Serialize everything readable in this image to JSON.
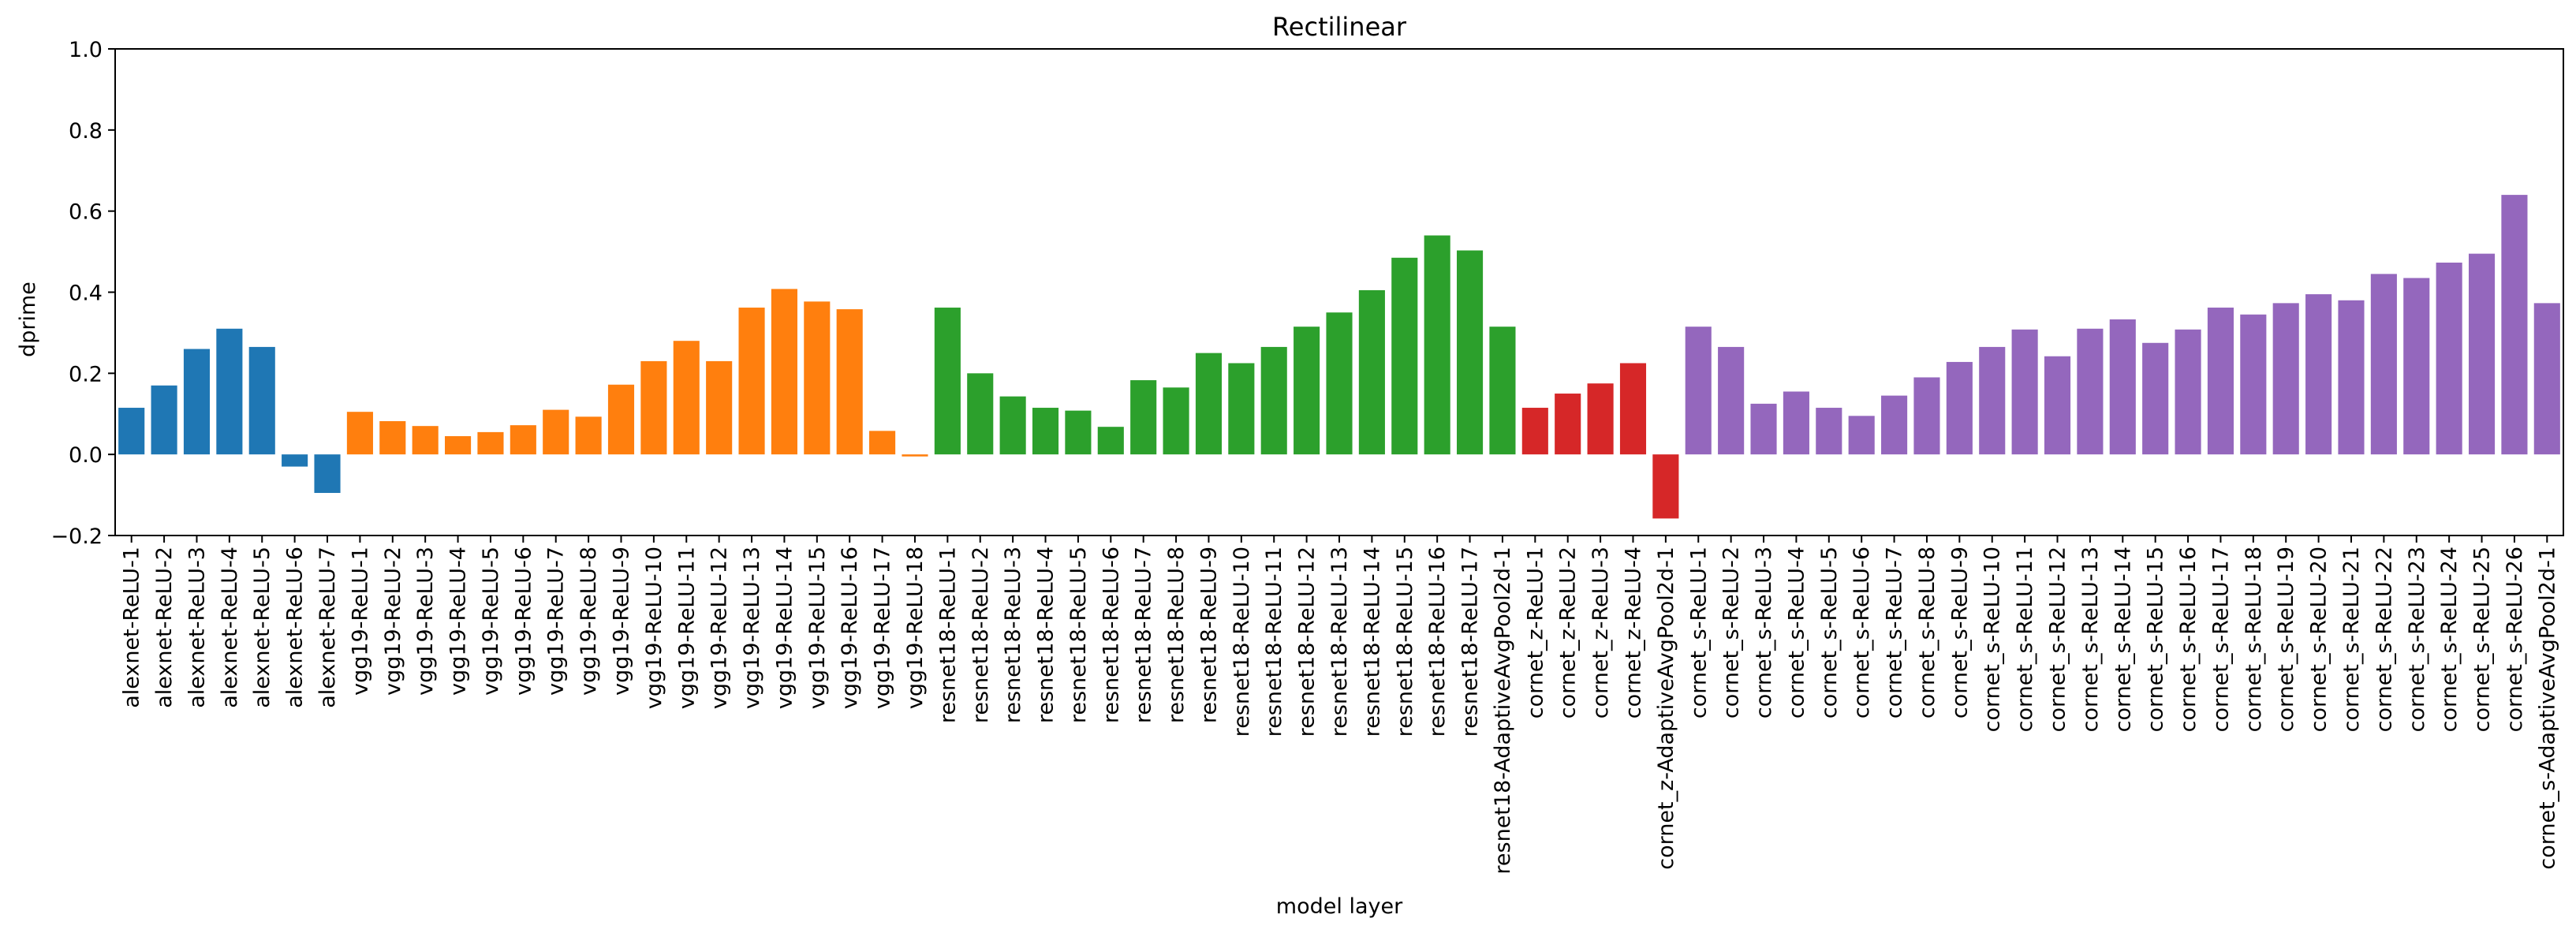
{
  "chart_data": {
    "type": "bar",
    "title": "Rectilinear",
    "xlabel": "model layer",
    "ylabel": "dprime",
    "ylim": [
      -0.2,
      1.0
    ],
    "yticks": [
      "−0.2",
      "0.0",
      "0.2",
      "0.4",
      "0.6",
      "0.8",
      "1.0"
    ],
    "grid": false,
    "groups": [
      {
        "name": "alexnet",
        "color": "#1f77b4",
        "categories": [
          "alexnet-ReLU-1",
          "alexnet-ReLU-2",
          "alexnet-ReLU-3",
          "alexnet-ReLU-4",
          "alexnet-ReLU-5",
          "alexnet-ReLU-6",
          "alexnet-ReLU-7"
        ],
        "values": [
          0.115,
          0.17,
          0.26,
          0.31,
          0.265,
          -0.03,
          -0.095
        ]
      },
      {
        "name": "vgg19",
        "color": "#ff7f0e",
        "categories": [
          "vgg19-ReLU-1",
          "vgg19-ReLU-2",
          "vgg19-ReLU-3",
          "vgg19-ReLU-4",
          "vgg19-ReLU-5",
          "vgg19-ReLU-6",
          "vgg19-ReLU-7",
          "vgg19-ReLU-8",
          "vgg19-ReLU-9",
          "vgg19-ReLU-10",
          "vgg19-ReLU-11",
          "vgg19-ReLU-12",
          "vgg19-ReLU-13",
          "vgg19-ReLU-14",
          "vgg19-ReLU-15",
          "vgg19-ReLU-16",
          "vgg19-ReLU-17",
          "vgg19-ReLU-18"
        ],
        "values": [
          0.105,
          0.082,
          0.07,
          0.045,
          0.055,
          0.072,
          0.11,
          0.093,
          0.172,
          0.23,
          0.28,
          0.23,
          0.362,
          0.408,
          0.377,
          0.358,
          0.058,
          -0.005
        ]
      },
      {
        "name": "resnet18",
        "color": "#2ca02c",
        "categories": [
          "resnet18-ReLU-1",
          "resnet18-ReLU-2",
          "resnet18-ReLU-3",
          "resnet18-ReLU-4",
          "resnet18-ReLU-5",
          "resnet18-ReLU-6",
          "resnet18-ReLU-7",
          "resnet18-ReLU-8",
          "resnet18-ReLU-9",
          "resnet18-ReLU-10",
          "resnet18-ReLU-11",
          "resnet18-ReLU-12",
          "resnet18-ReLU-13",
          "resnet18-ReLU-14",
          "resnet18-ReLU-15",
          "resnet18-ReLU-16",
          "resnet18-ReLU-17",
          "resnet18-AdaptiveAvgPool2d-1"
        ],
        "values": [
          0.362,
          0.2,
          0.143,
          0.115,
          0.108,
          0.068,
          0.183,
          0.165,
          0.25,
          0.225,
          0.265,
          0.315,
          0.35,
          0.405,
          0.485,
          0.54,
          0.503,
          0.315
        ]
      },
      {
        "name": "cornet_z",
        "color": "#d62728",
        "categories": [
          "cornet_z-ReLU-1",
          "cornet_z-ReLU-2",
          "cornet_z-ReLU-3",
          "cornet_z-ReLU-4",
          "cornet_z-AdaptiveAvgPool2d-1"
        ],
        "values": [
          0.115,
          0.15,
          0.175,
          0.225,
          -0.158
        ]
      },
      {
        "name": "cornet_s",
        "color": "#9467bd",
        "categories": [
          "cornet_s-ReLU-1",
          "cornet_s-ReLU-2",
          "cornet_s-ReLU-3",
          "cornet_s-ReLU-4",
          "cornet_s-ReLU-5",
          "cornet_s-ReLU-6",
          "cornet_s-ReLU-7",
          "cornet_s-ReLU-8",
          "cornet_s-ReLU-9",
          "cornet_s-ReLU-10",
          "cornet_s-ReLU-11",
          "cornet_s-ReLU-12",
          "cornet_s-ReLU-13",
          "cornet_s-ReLU-14",
          "cornet_s-ReLU-15",
          "cornet_s-ReLU-16",
          "cornet_s-ReLU-17",
          "cornet_s-ReLU-18",
          "cornet_s-ReLU-19",
          "cornet_s-ReLU-20",
          "cornet_s-ReLU-21",
          "cornet_s-ReLU-22",
          "cornet_s-ReLU-23",
          "cornet_s-ReLU-24",
          "cornet_s-ReLU-25",
          "cornet_s-ReLU-26",
          "cornet_s-AdaptiveAvgPool2d-1"
        ],
        "values": [
          0.315,
          0.265,
          0.125,
          0.155,
          0.115,
          0.095,
          0.145,
          0.19,
          0.228,
          0.265,
          0.308,
          0.242,
          0.31,
          0.333,
          0.275,
          0.308,
          0.362,
          0.345,
          0.373,
          0.395,
          0.38,
          0.445,
          0.435,
          0.473,
          0.495,
          0.64,
          0.373
        ]
      }
    ]
  }
}
